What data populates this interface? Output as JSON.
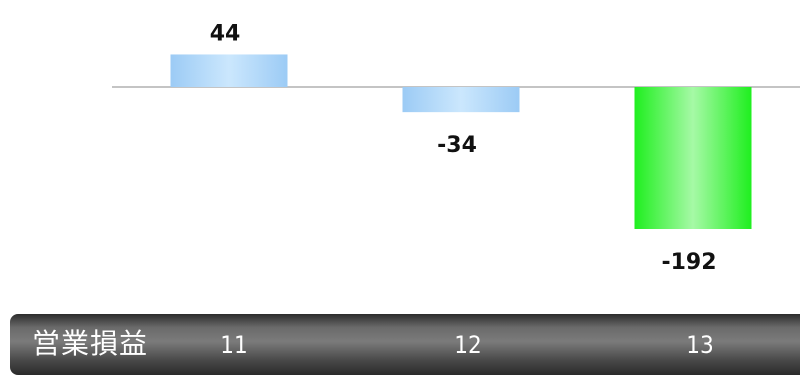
{
  "footer": {
    "title": "営業損益"
  },
  "chart_data": {
    "type": "bar",
    "categories": [
      "11",
      "12",
      "13"
    ],
    "values": [
      44,
      -34,
      -192
    ],
    "data_labels": [
      "44",
      "-34",
      "-192"
    ],
    "bar_colors": [
      [
        "#9ccbf5",
        "#cbe7fd",
        "#9ccbf5"
      ],
      [
        "#9ccbf5",
        "#cbe7fd",
        "#9ccbf5"
      ],
      [
        "#1fef1f",
        "#a6f9a6",
        "#1fef1f"
      ]
    ],
    "axis_color": "#8a8a8a",
    "title": "",
    "xlabel": "",
    "ylabel": "",
    "grid": false,
    "legend": "none"
  }
}
